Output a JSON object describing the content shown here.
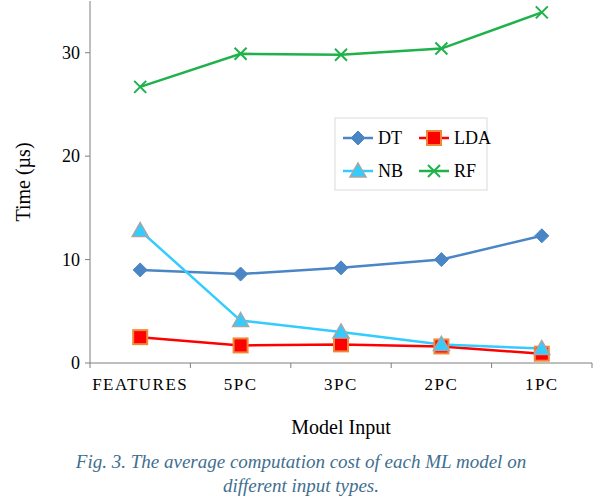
{
  "chart_data": {
    "type": "line",
    "title": [
      "Fig. 3. The average computation cost of each ML model  on",
      "different input types."
    ],
    "x_label": "Model Input",
    "y_label": "Time (µs)",
    "categories": [
      "FEATURES",
      "5PC",
      "3PC",
      "2PC",
      "1PC"
    ],
    "ylim": [
      0,
      35
    ],
    "yticks": [
      0,
      10,
      20,
      30
    ],
    "grid": false,
    "legend": "center",
    "series": [
      {
        "name": "DT",
        "color": "#4a86c5",
        "marker": "diamond",
        "values": [
          9.0,
          8.6,
          9.2,
          10.0,
          12.3
        ]
      },
      {
        "name": "LDA",
        "color": "#ff0000",
        "marker": "square",
        "values": [
          2.5,
          1.7,
          1.8,
          1.6,
          0.9
        ]
      },
      {
        "name": "NB",
        "color": "#33ccff",
        "marker": "triangle",
        "values": [
          12.8,
          4.1,
          3.0,
          1.8,
          1.4
        ]
      },
      {
        "name": "RF",
        "color": "#1fb24a",
        "marker": "x",
        "values": [
          26.7,
          29.9,
          29.8,
          30.4,
          33.9
        ]
      }
    ]
  }
}
